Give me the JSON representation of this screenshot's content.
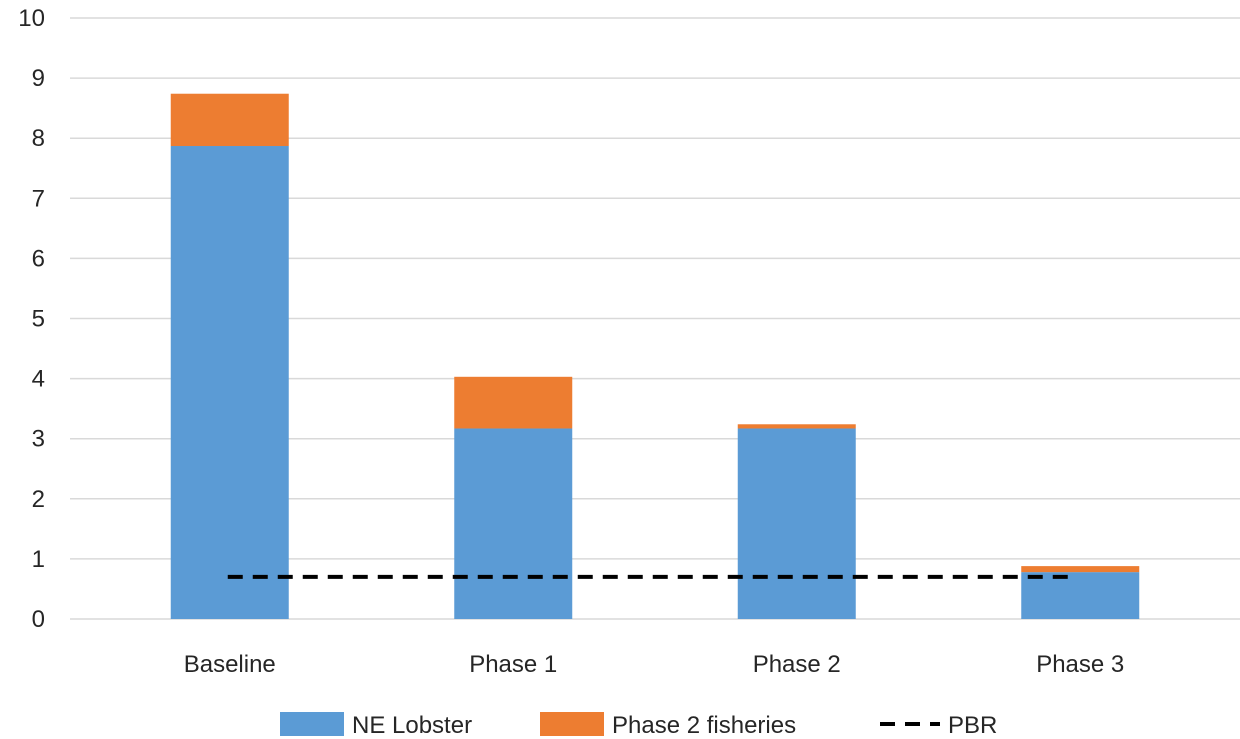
{
  "chart_data": {
    "type": "bar",
    "stacked": true,
    "title": "",
    "xlabel": "",
    "ylabel": "",
    "ylim": [
      0,
      10
    ],
    "yticks": [
      "0",
      "1",
      "2",
      "3",
      "4",
      "5",
      "6",
      "7",
      "8",
      "9",
      "10"
    ],
    "grid": true,
    "legend_position": "bottom",
    "categories": [
      "Baseline",
      "Phase 1",
      "Phase 2",
      "Phase 3"
    ],
    "series": [
      {
        "name": "NE Lobster",
        "color": "#5b9bd5",
        "values": [
          7.87,
          3.17,
          3.17,
          0.78
        ]
      },
      {
        "name": "Phase 2 fisheries",
        "color": "#ed7d31",
        "values": [
          0.87,
          0.86,
          0.07,
          0.1
        ]
      }
    ],
    "reference_line": {
      "name": "PBR",
      "value": 0.7,
      "color": "#000000",
      "style": "dashed"
    }
  }
}
